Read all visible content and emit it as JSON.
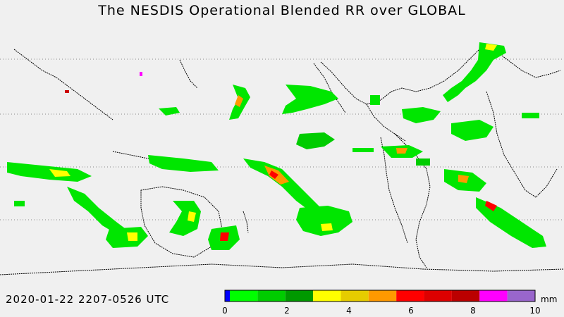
{
  "title": "The NESDIS  Operational  Blended RR over GLOBAL",
  "timestamp": "2020-01-22  2207-0526  UTC",
  "legend": {
    "unit": "mm",
    "tick_labels": [
      "0",
      "2",
      "4",
      "6",
      "8",
      "10"
    ],
    "min": 0,
    "max": 10,
    "colors": [
      "#0000ff",
      "#00ff00",
      "#00cc00",
      "#009900",
      "#ffff00",
      "#e6cc00",
      "#ff9900",
      "#ff0000",
      "#dd0000",
      "#bb0000",
      "#ff00ff",
      "#9966cc"
    ]
  },
  "map": {
    "background_color": "#f0f0f0",
    "coastline_color": "#000000",
    "latitude_lines": "dotted"
  }
}
